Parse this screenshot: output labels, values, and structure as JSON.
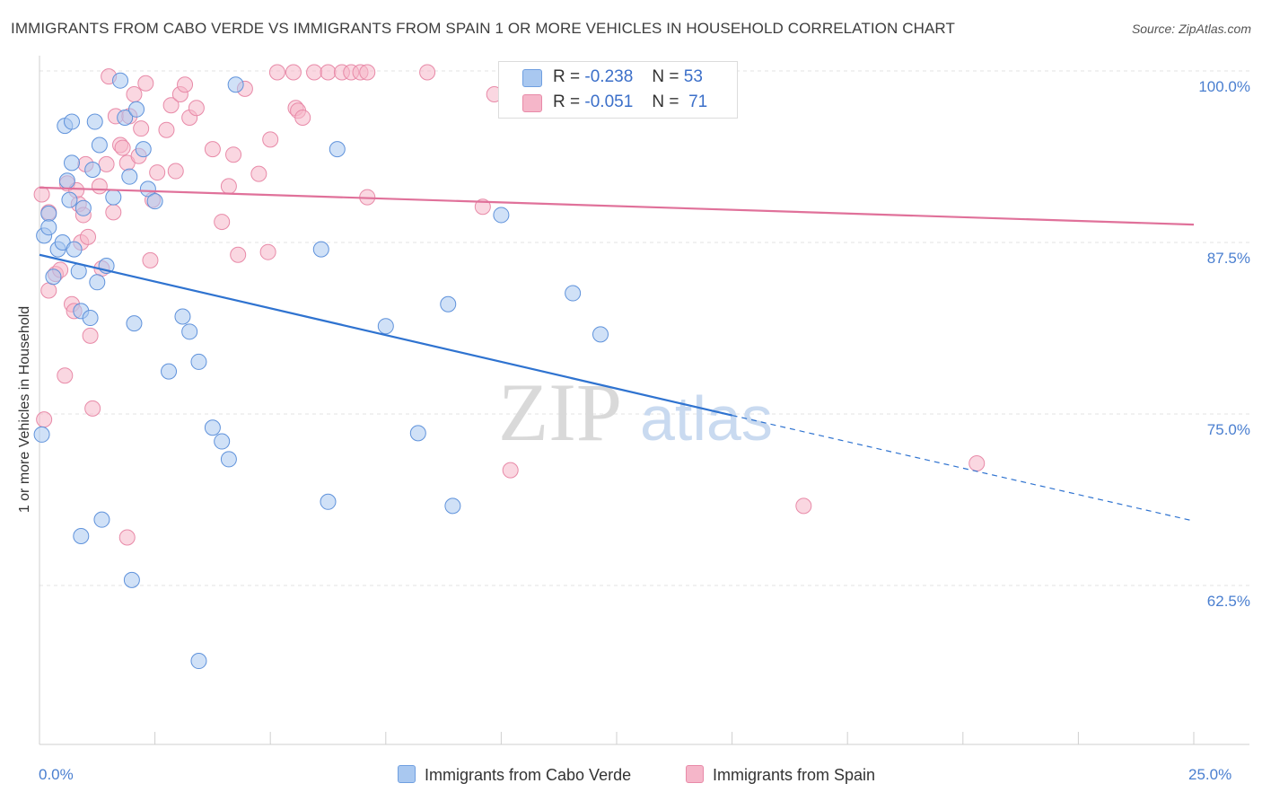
{
  "title": "IMMIGRANTS FROM CABO VERDE VS IMMIGRANTS FROM SPAIN 1 OR MORE VEHICLES IN HOUSEHOLD CORRELATION CHART",
  "source": "Source: ZipAtlas.com",
  "watermark": {
    "zip": "ZIP",
    "atlas": "atlas"
  },
  "stats": {
    "rows": [
      {
        "r_label": "R =",
        "r_value": "-0.238",
        "n_label": "N =",
        "n_value": "53",
        "color": "#a9c8f0"
      },
      {
        "r_label": "R =",
        "r_value": "-0.051",
        "n_label": "N =",
        "n_value": "71",
        "color": "#f5b6c9"
      }
    ]
  },
  "legend": {
    "items": [
      {
        "label": "Immigrants from Cabo Verde",
        "color": "#a9c8f0"
      },
      {
        "label": "Immigrants from Spain",
        "color": "#f5b6c9"
      }
    ]
  },
  "chart_data": {
    "type": "scatter",
    "title": "IMMIGRANTS FROM CABO VERDE VS IMMIGRANTS FROM SPAIN 1 OR MORE VEHICLES IN HOUSEHOLD CORRELATION CHART",
    "xlabel": "",
    "ylabel": "1 or more Vehicles in Household",
    "xlim": [
      0,
      25
    ],
    "ylim": [
      50,
      101.5
    ],
    "x_tick_labels": [
      "0.0%",
      "25.0%"
    ],
    "y_ticks": [
      62.5,
      75.0,
      87.5,
      100.0
    ],
    "y_tick_labels": [
      "62.5%",
      "75.0%",
      "87.5%",
      "100.0%"
    ],
    "grid": "horizontal dashed",
    "legend_position": "bottom-center",
    "series": [
      {
        "name": "Immigrants from Cabo Verde",
        "color": "#a9c8f0",
        "line_color": "#2f73d0",
        "trend": {
          "x": [
            0,
            15
          ],
          "y": [
            86.6,
            74.9
          ],
          "dashed_to": [
            25,
            67.2
          ]
        },
        "points": [
          [
            0.1,
            88.0
          ],
          [
            0.2,
            89.6
          ],
          [
            0.2,
            88.6
          ],
          [
            0.3,
            85.0
          ],
          [
            0.4,
            87.0
          ],
          [
            0.5,
            87.5
          ],
          [
            0.55,
            96.0
          ],
          [
            0.7,
            96.3
          ],
          [
            0.7,
            93.3
          ],
          [
            0.6,
            92.0
          ],
          [
            0.65,
            90.6
          ],
          [
            0.75,
            87.0
          ],
          [
            0.85,
            85.4
          ],
          [
            0.9,
            82.5
          ],
          [
            0.95,
            90.0
          ],
          [
            1.1,
            82.0
          ],
          [
            1.15,
            92.8
          ],
          [
            1.2,
            96.3
          ],
          [
            1.25,
            84.6
          ],
          [
            1.3,
            94.6
          ],
          [
            1.45,
            85.8
          ],
          [
            1.6,
            90.8
          ],
          [
            1.75,
            99.3
          ],
          [
            1.85,
            96.6
          ],
          [
            1.95,
            92.3
          ],
          [
            2.05,
            81.6
          ],
          [
            2.1,
            97.2
          ],
          [
            2.25,
            94.3
          ],
          [
            2.35,
            91.4
          ],
          [
            2.5,
            90.5
          ],
          [
            2.8,
            78.1
          ],
          [
            3.1,
            82.1
          ],
          [
            3.25,
            81.0
          ],
          [
            3.45,
            78.8
          ],
          [
            3.75,
            74.0
          ],
          [
            3.95,
            73.0
          ],
          [
            4.1,
            71.7
          ],
          [
            4.25,
            99.0
          ],
          [
            6.1,
            87.0
          ],
          [
            6.25,
            68.6
          ],
          [
            6.45,
            94.3
          ],
          [
            7.5,
            81.4
          ],
          [
            8.2,
            73.6
          ],
          [
            8.85,
            83.0
          ],
          [
            8.95,
            68.3
          ],
          [
            10.0,
            89.5
          ],
          [
            11.55,
            83.8
          ],
          [
            12.15,
            80.8
          ],
          [
            0.05,
            73.5
          ],
          [
            1.35,
            67.3
          ],
          [
            0.9,
            66.1
          ],
          [
            2.0,
            62.9
          ],
          [
            3.45,
            57.0
          ]
        ]
      },
      {
        "name": "Immigrants from Spain",
        "color": "#f5b6c9",
        "line_color": "#e0719a",
        "trend": {
          "x": [
            0,
            25
          ],
          "y": [
            91.5,
            88.8
          ]
        },
        "points": [
          [
            0.05,
            91.0
          ],
          [
            0.2,
            89.7
          ],
          [
            0.2,
            84.0
          ],
          [
            0.35,
            85.2
          ],
          [
            0.45,
            85.5
          ],
          [
            0.55,
            77.8
          ],
          [
            0.6,
            91.8
          ],
          [
            0.7,
            83.0
          ],
          [
            0.75,
            82.5
          ],
          [
            0.85,
            90.3
          ],
          [
            0.9,
            87.5
          ],
          [
            0.95,
            89.5
          ],
          [
            1.0,
            93.2
          ],
          [
            1.1,
            80.7
          ],
          [
            1.15,
            75.4
          ],
          [
            1.3,
            91.6
          ],
          [
            1.35,
            85.6
          ],
          [
            1.45,
            93.2
          ],
          [
            1.5,
            99.6
          ],
          [
            1.6,
            89.7
          ],
          [
            1.65,
            96.7
          ],
          [
            1.75,
            94.6
          ],
          [
            1.8,
            94.4
          ],
          [
            1.9,
            93.3
          ],
          [
            1.95,
            96.7
          ],
          [
            2.05,
            98.3
          ],
          [
            2.15,
            93.8
          ],
          [
            2.2,
            95.8
          ],
          [
            2.3,
            99.1
          ],
          [
            2.4,
            86.2
          ],
          [
            2.45,
            90.6
          ],
          [
            2.55,
            92.6
          ],
          [
            2.75,
            95.7
          ],
          [
            2.85,
            97.5
          ],
          [
            2.95,
            92.7
          ],
          [
            3.05,
            98.3
          ],
          [
            3.15,
            99.0
          ],
          [
            3.25,
            96.6
          ],
          [
            3.4,
            97.3
          ],
          [
            3.75,
            94.3
          ],
          [
            3.95,
            89.0
          ],
          [
            4.1,
            91.6
          ],
          [
            4.2,
            93.9
          ],
          [
            4.3,
            86.6
          ],
          [
            4.45,
            98.7
          ],
          [
            4.75,
            92.5
          ],
          [
            4.95,
            86.8
          ],
          [
            5.0,
            95.0
          ],
          [
            5.15,
            99.9
          ],
          [
            5.5,
            99.9
          ],
          [
            5.55,
            97.3
          ],
          [
            5.6,
            97.1
          ],
          [
            5.7,
            96.6
          ],
          [
            5.95,
            99.9
          ],
          [
            6.25,
            99.9
          ],
          [
            6.55,
            99.9
          ],
          [
            6.75,
            99.9
          ],
          [
            6.95,
            99.9
          ],
          [
            7.1,
            99.9
          ],
          [
            7.1,
            90.8
          ],
          [
            8.4,
            99.9
          ],
          [
            9.6,
            90.1
          ],
          [
            9.85,
            98.3
          ],
          [
            10.2,
            70.9
          ],
          [
            11.8,
            99.9
          ],
          [
            16.55,
            68.3
          ],
          [
            20.3,
            71.4
          ],
          [
            0.1,
            74.6
          ],
          [
            1.9,
            66.0
          ],
          [
            0.8,
            91.3
          ],
          [
            1.05,
            87.9
          ]
        ]
      }
    ]
  }
}
